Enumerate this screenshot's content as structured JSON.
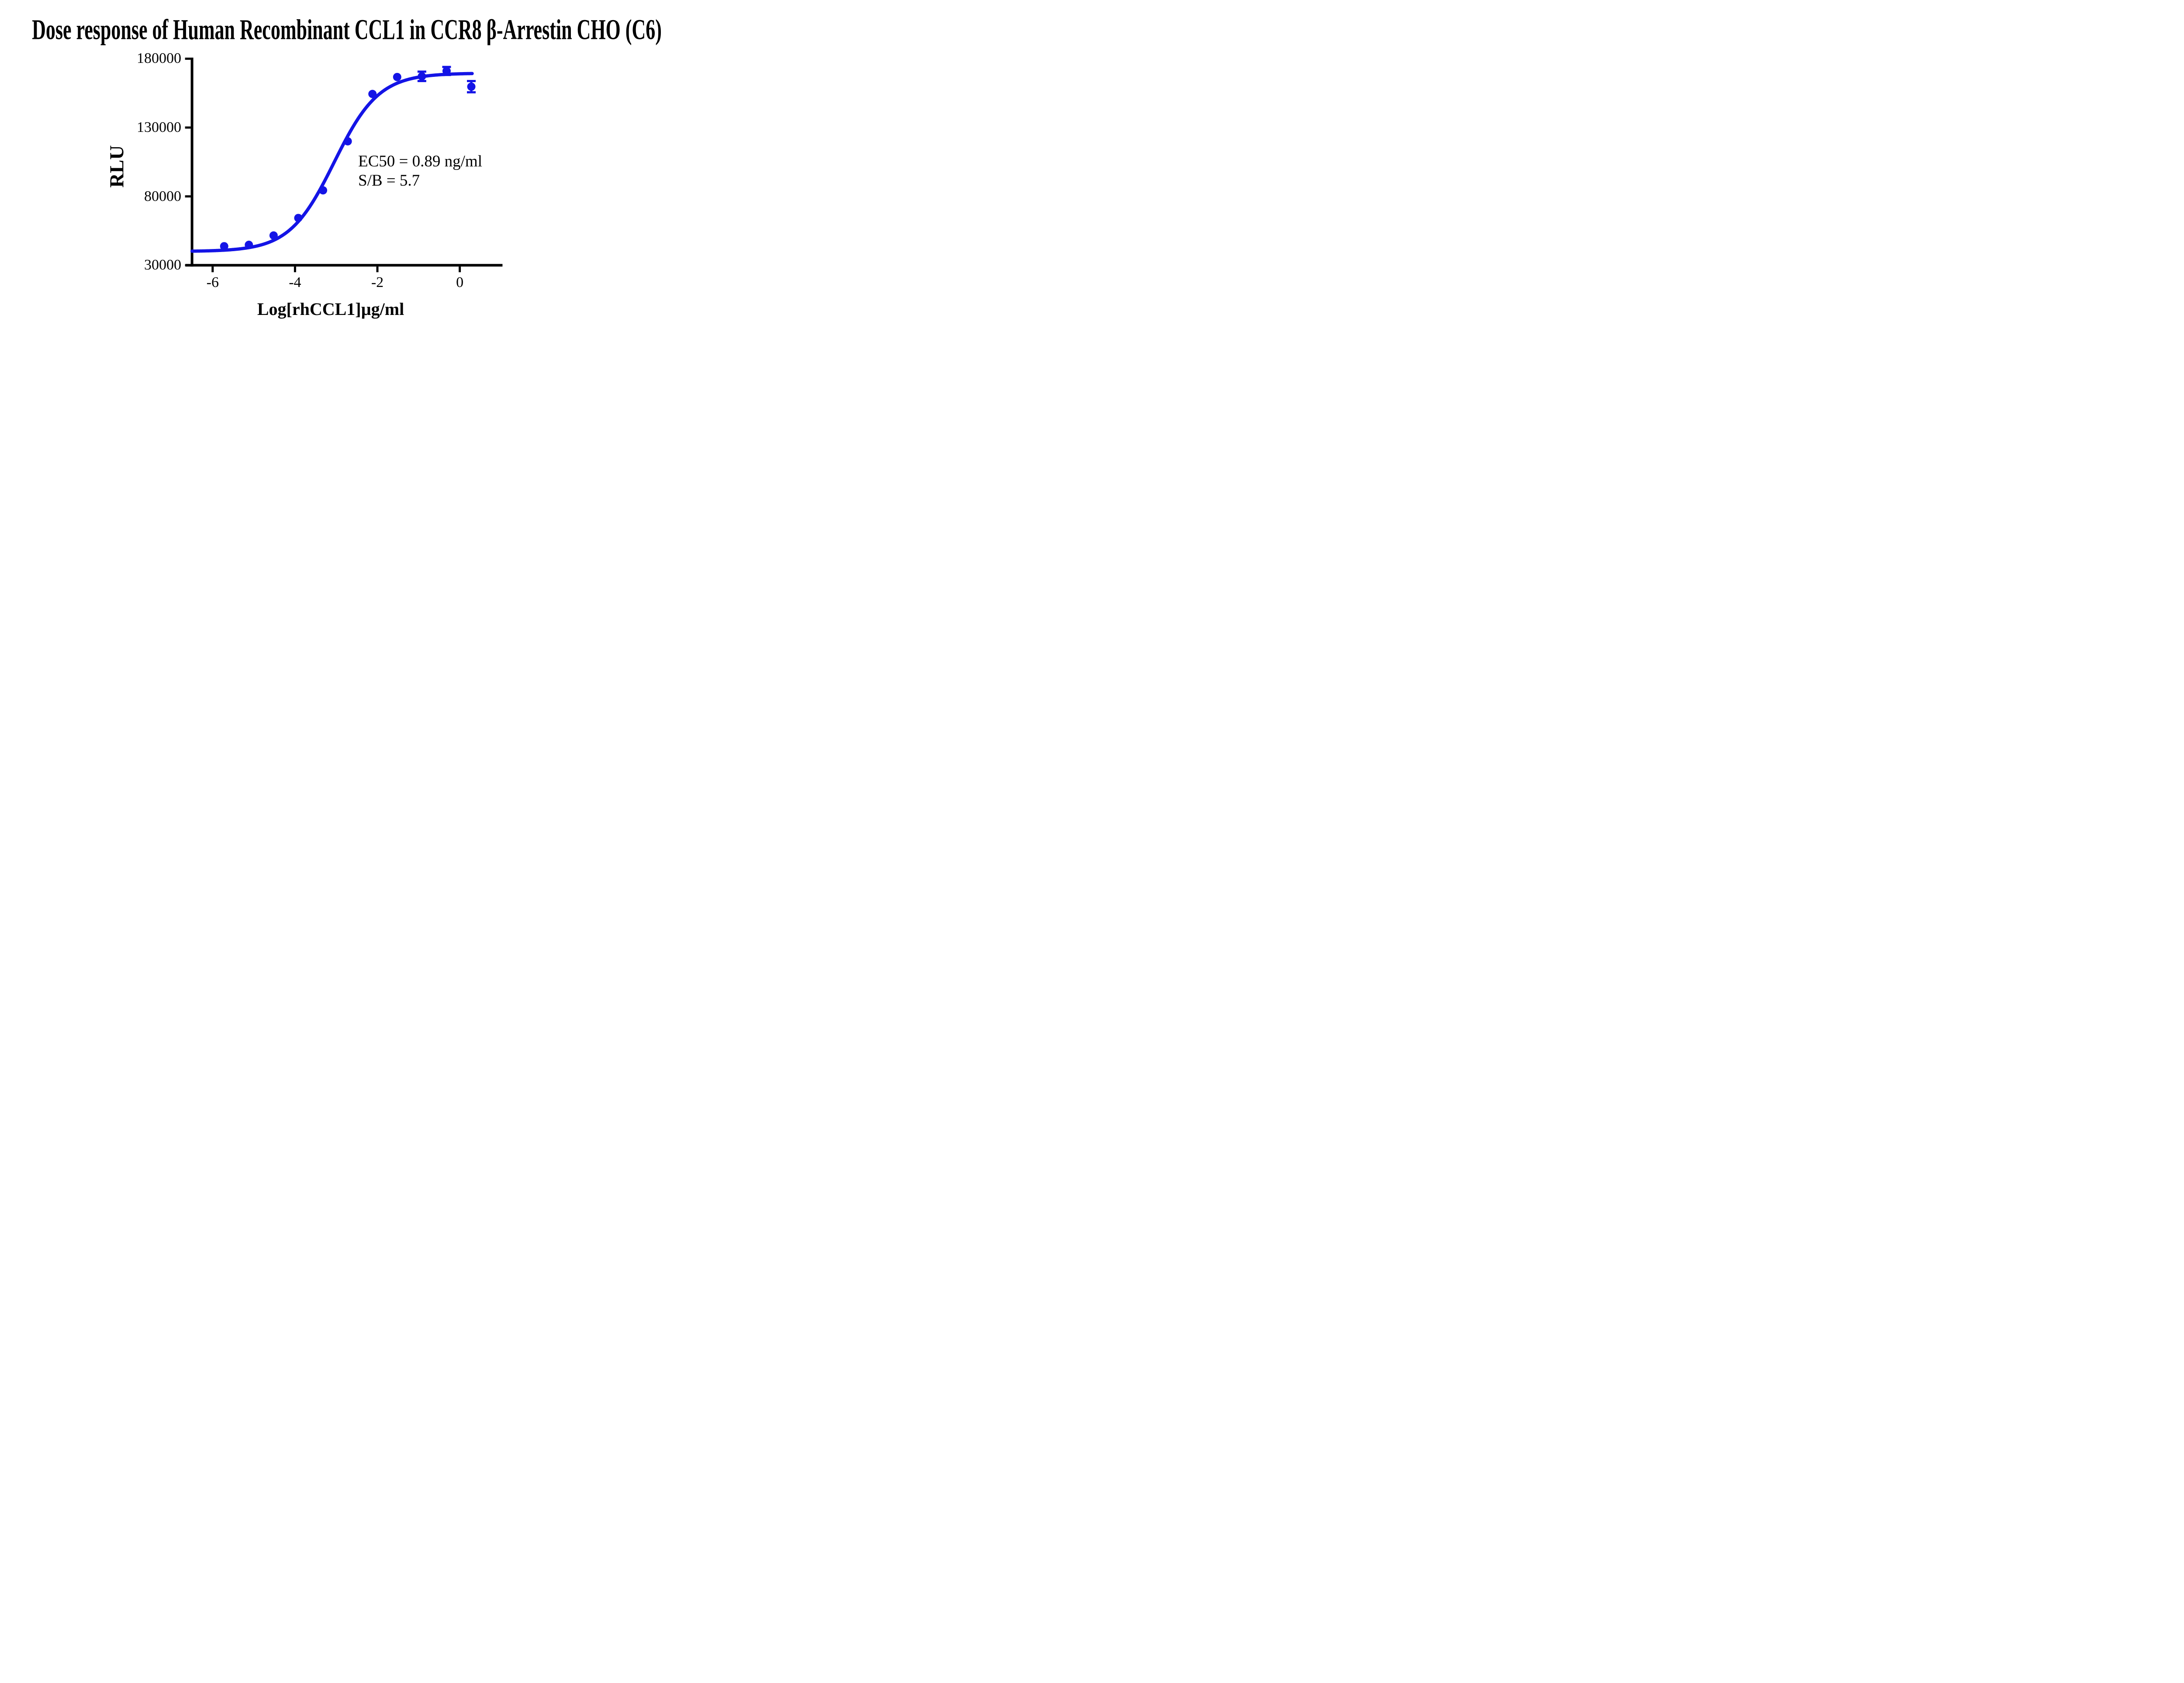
{
  "title": "Dose response of Human Recombinant CCL1 in CCR8 β-Arrestin CHO (C6)",
  "colors": {
    "accent": "#1414e6",
    "axis": "#000000",
    "background": "#ffffff"
  },
  "chart_data": {
    "type": "scatter",
    "title": "Dose response of Human Recombinant CCL1 in CCR8 β-Arrestin CHO (C6)",
    "xlabel": "Log[rhCCL1]µg/ml",
    "ylabel": "RLU",
    "grid": false,
    "legend": "none",
    "x_axis": {
      "tick_values": [
        -6,
        -4,
        -2,
        0
      ],
      "tick_labels": [
        "-6",
        "-4",
        "-2",
        "0"
      ],
      "range": [
        -6.5,
        1.04
      ]
    },
    "y_axis": {
      "tick_values": [
        30000,
        80000,
        130000,
        180000
      ],
      "tick_labels": [
        "30000",
        "80000",
        "130000",
        "180000"
      ],
      "range": [
        30000,
        180000
      ]
    },
    "series": [
      {
        "name": "rhCCL1",
        "marker": "circle",
        "color": "#1414e6",
        "points": [
          {
            "log_conc": -5.72,
            "rlu": 43800,
            "error": null
          },
          {
            "log_conc": -5.12,
            "rlu": 44800,
            "error": null
          },
          {
            "log_conc": -4.52,
            "rlu": 51600,
            "error": null
          },
          {
            "log_conc": -3.92,
            "rlu": 64300,
            "error": null
          },
          {
            "log_conc": -3.32,
            "rlu": 84400,
            "error": null
          },
          {
            "log_conc": -2.72,
            "rlu": 120000,
            "error": null
          },
          {
            "log_conc": -2.12,
            "rlu": 154400,
            "error": null
          },
          {
            "log_conc": -1.52,
            "rlu": 166700,
            "error": null
          },
          {
            "log_conc": -0.92,
            "rlu": 167200,
            "error": 3400
          },
          {
            "log_conc": -0.32,
            "rlu": 171100,
            "error": 2900
          },
          {
            "log_conc": 0.28,
            "rlu": 159700,
            "error": 4100
          }
        ]
      }
    ],
    "fit_curve": {
      "model": "4PL",
      "bottom": 40000,
      "top": 169500,
      "log_ec50": -3.05,
      "hill": 0.8,
      "x_start": -6.5,
      "x_end": 0.3
    },
    "annotations": [
      {
        "text": "EC50 = 0.89 ng/ml"
      },
      {
        "text": "S/B = 5.7"
      }
    ]
  }
}
